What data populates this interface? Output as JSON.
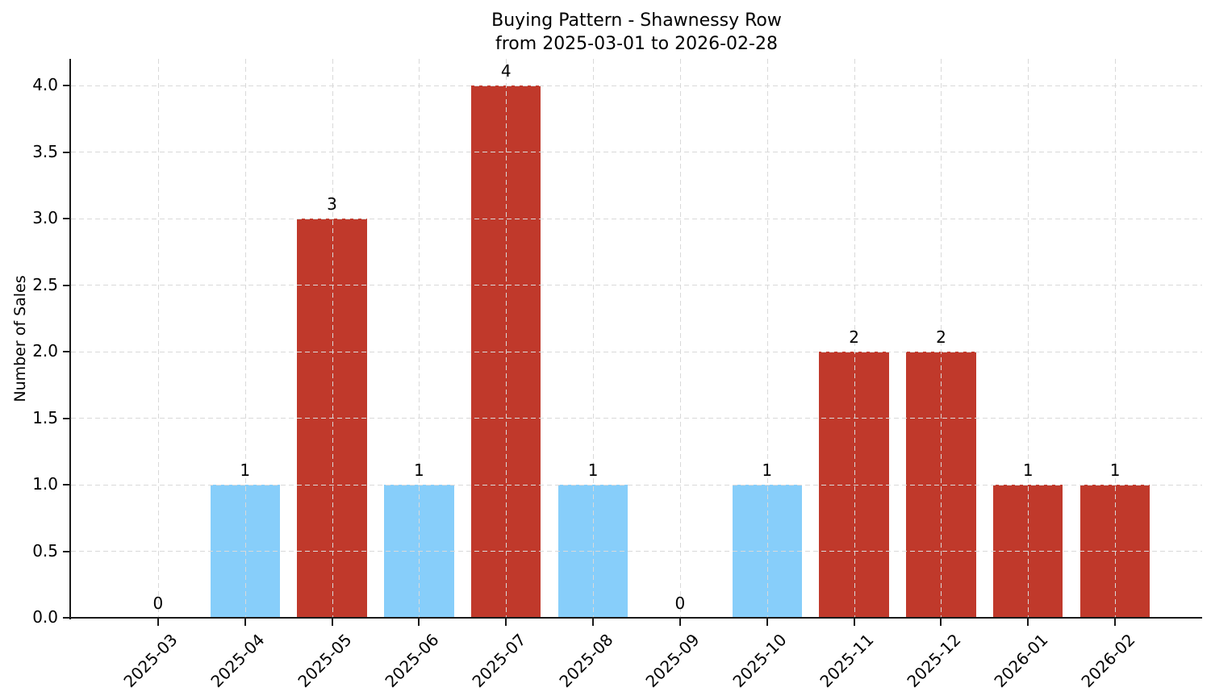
{
  "chart_data": {
    "type": "bar",
    "title": "Buying Pattern - Shawnessy Row",
    "subtitle": "from 2025-03-01 to 2026-02-28",
    "xlabel": "",
    "ylabel": "Number of Sales",
    "categories": [
      "2025-03",
      "2025-04",
      "2025-05",
      "2025-06",
      "2025-07",
      "2025-08",
      "2025-09",
      "2025-10",
      "2025-11",
      "2025-12",
      "2026-01",
      "2026-02"
    ],
    "values": [
      0,
      1,
      3,
      1,
      4,
      1,
      0,
      1,
      2,
      2,
      1,
      1
    ],
    "value_labels": [
      "0",
      "1",
      "3",
      "1",
      "4",
      "1",
      "0",
      "1",
      "2",
      "2",
      "1",
      "1"
    ],
    "bar_colors": [
      null,
      "#87CEFA",
      "#C0392B",
      "#87CEFA",
      "#C0392B",
      "#87CEFA",
      null,
      "#87CEFA",
      "#C0392B",
      "#C0392B",
      "#C0392B",
      "#C0392B"
    ],
    "yticks": [
      "0.0",
      "0.5",
      "1.0",
      "1.5",
      "2.0",
      "2.5",
      "3.0",
      "3.5",
      "4.0"
    ],
    "ylim": [
      0,
      4.2
    ],
    "xlim": [
      -1,
      12
    ],
    "grid": true,
    "grid_style": "dashed",
    "legend": null,
    "colors": {
      "bar_blue": "#87CEFA",
      "bar_red": "#C0392B",
      "grid": "#d9d9d9",
      "axis": "#1a1a1a",
      "text": "#000000",
      "background": "#ffffff"
    }
  }
}
